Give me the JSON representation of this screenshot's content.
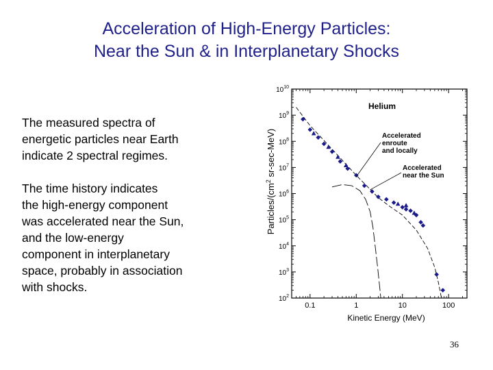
{
  "slide": {
    "title_lines": [
      "Acceleration of High-Energy Particles:",
      "Near the Sun & in Interplanetary Shocks"
    ],
    "paragraph1_lines": [
      "The measured spectra of",
      "energetic particles near Earth",
      "indicate 2 spectral regimes."
    ],
    "paragraph2_lines": [
      "The time history indicates",
      "the high-energy component",
      "was accelerated near the Sun,",
      "and the low-energy",
      "component in interplanetary",
      "space, probably in association",
      "with shocks."
    ],
    "page_number": "36",
    "title_color": "#1f1f8a"
  },
  "chart_data": {
    "type": "scatter",
    "title": "Helium",
    "xlabel": "Kinetic Energy (MeV)",
    "ylabel_main": "Particles/(cm",
    "ylabel_sup": "2",
    "ylabel_rest": " sr-sec-MeV)",
    "xscale": "log",
    "yscale": "log",
    "xlim": [
      0.04,
      250
    ],
    "ylim": [
      100,
      10000000000
    ],
    "x_ticks": [
      {
        "value": 0.1,
        "label": "0.1"
      },
      {
        "value": 1,
        "label": "1"
      },
      {
        "value": 10,
        "label": "10"
      },
      {
        "value": 100,
        "label": "100"
      }
    ],
    "y_ticks": [
      {
        "value": 100,
        "base": "10",
        "exp": "2"
      },
      {
        "value": 1000,
        "base": "10",
        "exp": "3"
      },
      {
        "value": 10000,
        "base": "10",
        "exp": "4"
      },
      {
        "value": 100000,
        "base": "10",
        "exp": "5"
      },
      {
        "value": 1000000,
        "base": "10",
        "exp": "6"
      },
      {
        "value": 10000000,
        "base": "10",
        "exp": "7"
      },
      {
        "value": 100000000,
        "base": "10",
        "exp": "8"
      },
      {
        "value": 1000000000,
        "base": "10",
        "exp": "9"
      },
      {
        "value": 10000000000,
        "base": "10",
        "exp": "10"
      }
    ],
    "series": [
      {
        "name": "diamonds",
        "marker": "diamond",
        "points": [
          [
            0.07,
            700000000
          ],
          [
            0.1,
            280000000
          ],
          [
            0.15,
            140000000
          ],
          [
            0.2,
            80000000
          ],
          [
            0.3,
            40000000
          ],
          [
            0.45,
            17000000
          ],
          [
            0.65,
            9000000
          ],
          [
            1.0,
            5000000
          ],
          [
            1.5,
            2000000
          ],
          [
            2.2,
            1200000
          ],
          [
            3.0,
            750000
          ],
          [
            4.5,
            600000
          ],
          [
            6.5,
            450000
          ],
          [
            10,
            300000
          ],
          [
            12,
            250000
          ],
          [
            15,
            220000
          ],
          [
            20,
            150000
          ],
          [
            25,
            80000
          ],
          [
            28,
            60000
          ],
          [
            55,
            800
          ],
          [
            75,
            200
          ]
        ]
      },
      {
        "name": "triangles",
        "marker": "triangle",
        "points": [
          [
            0.12,
            200000000
          ],
          [
            0.25,
            60000000
          ],
          [
            0.4,
            25000000
          ],
          [
            0.6,
            12000000
          ],
          [
            8,
            400000
          ],
          [
            12,
            350000
          ],
          [
            18,
            180000
          ]
        ]
      }
    ],
    "curves": [
      {
        "name": "Accelerated enroute and locally",
        "style": "dashed",
        "points": [
          [
            0.05,
            2000000000
          ],
          [
            0.1,
            400000000
          ],
          [
            0.3,
            50000000
          ],
          [
            1,
            5000000
          ],
          [
            3,
            700000
          ],
          [
            5,
            350000
          ],
          [
            10,
            150000
          ],
          [
            20,
            40000
          ],
          [
            35,
            8000
          ],
          [
            50,
            1500
          ],
          [
            60,
            400
          ],
          [
            70,
            100
          ]
        ]
      },
      {
        "name": "Accelerated near the Sun",
        "style": "long-dash",
        "points": [
          [
            0.3,
            1800000
          ],
          [
            0.5,
            2200000
          ],
          [
            0.8,
            2000000
          ],
          [
            1.2,
            1300000
          ],
          [
            1.6,
            600000
          ],
          [
            2.0,
            200000
          ],
          [
            2.3,
            50000
          ],
          [
            2.6,
            8000
          ],
          [
            2.9,
            1500
          ],
          [
            3.2,
            300
          ],
          [
            3.4,
            100
          ]
        ]
      }
    ],
    "annotations": [
      {
        "text_lines": [
          "Accelerated",
          "enroute",
          "and locally"
        ],
        "target": "Accelerated enroute and locally"
      },
      {
        "text_lines": [
          "Accelerated",
          "near the Sun"
        ],
        "target": "Accelerated near the Sun"
      }
    ]
  }
}
